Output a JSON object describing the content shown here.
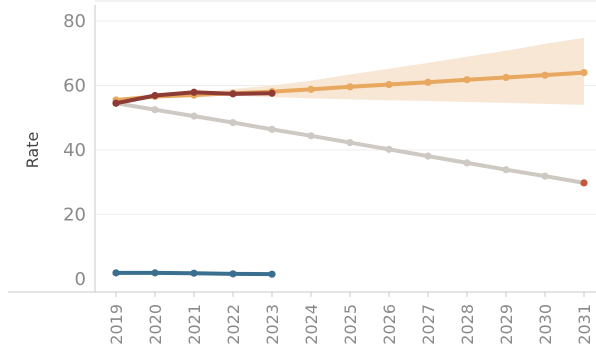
{
  "chart_data": {
    "type": "line",
    "ylabel": "Rate",
    "xlabel": "",
    "ylim": [
      0,
      80
    ],
    "y_ticks": [
      0,
      20,
      40,
      60,
      80
    ],
    "x": [
      2019,
      2020,
      2021,
      2022,
      2023,
      2024,
      2025,
      2026,
      2027,
      2028,
      2029,
      2030,
      2031
    ],
    "grid": "horizontal",
    "legend": "none",
    "series": [
      {
        "key": "projected-band",
        "type": "band",
        "color": "#f6e3cc",
        "x": [
          2019,
          2020,
          2021,
          2022,
          2023,
          2024,
          2025,
          2026,
          2027,
          2028,
          2029,
          2030,
          2031
        ],
        "lower": [
          55.5,
          56.5,
          56.9,
          56.8,
          56.4,
          56.0,
          55.7,
          55.4,
          55.2,
          54.9,
          54.6,
          54.3,
          54.0
        ],
        "upper": [
          55.5,
          56.6,
          57.8,
          58.9,
          60.0,
          61.5,
          63.4,
          65.2,
          67.0,
          68.9,
          70.8,
          72.9,
          74.8
        ]
      },
      {
        "key": "projected-decline",
        "type": "line",
        "color": "#cfc9c4",
        "end_marker_color": "#c8553d",
        "x": [
          2019,
          2020,
          2021,
          2022,
          2023,
          2024,
          2025,
          2026,
          2027,
          2028,
          2029,
          2030,
          2031
        ],
        "values": [
          54.5,
          52.5,
          50.5,
          48.5,
          46.4,
          44.4,
          42.3,
          40.2,
          38.1,
          36.0,
          33.9,
          31.9,
          29.8
        ]
      },
      {
        "key": "projected-increase",
        "type": "line",
        "color": "#e8a860",
        "x": [
          2019,
          2020,
          2021,
          2022,
          2023,
          2024,
          2025,
          2026,
          2027,
          2028,
          2029,
          2030,
          2031
        ],
        "values": [
          55.5,
          56.6,
          57.0,
          57.6,
          58.1,
          58.8,
          59.6,
          60.3,
          61.0,
          61.8,
          62.5,
          63.2,
          64.0
        ]
      },
      {
        "key": "observed",
        "type": "line",
        "color": "#8e3b35",
        "x": [
          2019,
          2020,
          2021,
          2022,
          2023
        ],
        "values": [
          54.5,
          56.9,
          57.9,
          57.4,
          57.6
        ]
      },
      {
        "key": "lower-series",
        "type": "line",
        "color": "#3b6f8f",
        "x": [
          2019,
          2020,
          2021,
          2022,
          2023
        ],
        "values": [
          1.9,
          1.9,
          1.8,
          1.6,
          1.5
        ]
      }
    ]
  }
}
